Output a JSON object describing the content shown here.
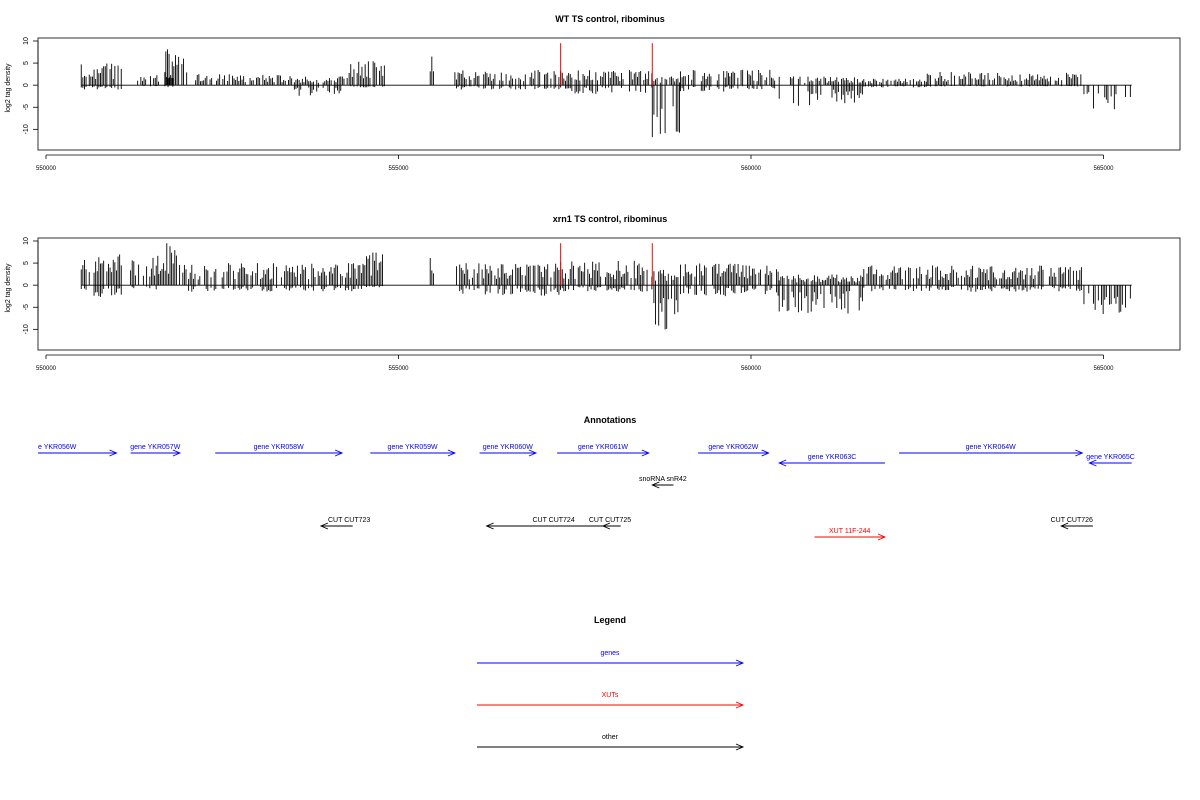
{
  "chart_data": [
    {
      "type": "bar",
      "title": "WT TS control, ribominus",
      "xlabel": "",
      "ylabel": "log2 tag density",
      "xlim": [
        550000,
        566000
      ],
      "ylim": [
        -14,
        10
      ],
      "x_ticks": [
        550000,
        555000,
        560000,
        565000
      ],
      "x_tick_labels": [
        "550000",
        "555000",
        "560000",
        "565000"
      ],
      "y_ticks": [
        -10,
        -5,
        0,
        5,
        10
      ],
      "y_tick_labels": [
        "-10",
        "-5",
        "0",
        "5",
        "10"
      ],
      "grid": false,
      "baseline": {
        "from": 550500,
        "to": 565400
      },
      "red_markers": [
        {
          "x": 557300,
          "top": 9.5
        },
        {
          "x": 558600,
          "top": 9.5
        }
      ],
      "segments": [
        {
          "from": 550500,
          "to": 551100,
          "pos": 5,
          "neg": 1
        },
        {
          "from": 551300,
          "to": 551800,
          "pos": 3,
          "neg": 0.5
        },
        {
          "from": 551700,
          "to": 552000,
          "pos": 8.5,
          "neg": 0
        },
        {
          "from": 552100,
          "to": 553500,
          "pos": 2.5,
          "neg": 0
        },
        {
          "from": 553500,
          "to": 554300,
          "pos": 2,
          "neg": 2.5
        },
        {
          "from": 554300,
          "to": 554800,
          "pos": 5.5,
          "neg": 0.5
        },
        {
          "from": 555450,
          "to": 555500,
          "pos": 7,
          "neg": 0
        },
        {
          "from": 555800,
          "to": 557300,
          "pos": 3.5,
          "neg": 1
        },
        {
          "from": 557300,
          "to": 558600,
          "pos": 3.5,
          "neg": 2
        },
        {
          "from": 558600,
          "to": 559000,
          "pos": 2,
          "neg": 13.5
        },
        {
          "from": 559000,
          "to": 559700,
          "pos": 3.5,
          "neg": 1.5
        },
        {
          "from": 559700,
          "to": 560400,
          "pos": 3.5,
          "neg": 1
        },
        {
          "from": 560400,
          "to": 561600,
          "pos": 2,
          "neg": 5
        },
        {
          "from": 561600,
          "to": 562500,
          "pos": 1.5,
          "neg": 0.5
        },
        {
          "from": 562500,
          "to": 564700,
          "pos": 3,
          "neg": 0.3
        },
        {
          "from": 564700,
          "to": 565400,
          "pos": 0,
          "neg": 5.5
        }
      ]
    },
    {
      "type": "bar",
      "title": "xrn1 TS control, ribominus",
      "xlabel": "",
      "ylabel": "log2 tag density",
      "xlim": [
        550000,
        566000
      ],
      "ylim": [
        -14,
        10
      ],
      "x_ticks": [
        550000,
        555000,
        560000,
        565000
      ],
      "x_tick_labels": [
        "550000",
        "555000",
        "560000",
        "565000"
      ],
      "y_ticks": [
        -10,
        -5,
        0,
        5,
        10
      ],
      "y_tick_labels": [
        "-10",
        "-5",
        "0",
        "5",
        "10"
      ],
      "grid": false,
      "baseline": {
        "from": 550500,
        "to": 565400
      },
      "red_markers": [
        {
          "x": 557300,
          "top": 9.5
        },
        {
          "x": 558600,
          "top": 9.5
        }
      ],
      "segments": [
        {
          "from": 550500,
          "to": 551100,
          "pos": 7,
          "neg": 3
        },
        {
          "from": 551200,
          "to": 551600,
          "pos": 7,
          "neg": 1
        },
        {
          "from": 551600,
          "to": 552000,
          "pos": 9.5,
          "neg": 0
        },
        {
          "from": 552000,
          "to": 554500,
          "pos": 5,
          "neg": 1.5
        },
        {
          "from": 554500,
          "to": 554800,
          "pos": 7.5,
          "neg": 0.5
        },
        {
          "from": 555450,
          "to": 555500,
          "pos": 7,
          "neg": 0
        },
        {
          "from": 555800,
          "to": 557300,
          "pos": 5,
          "neg": 2.5
        },
        {
          "from": 557300,
          "to": 558600,
          "pos": 5.5,
          "neg": 1.5
        },
        {
          "from": 558600,
          "to": 559000,
          "pos": 3.5,
          "neg": 13
        },
        {
          "from": 559000,
          "to": 560400,
          "pos": 5,
          "neg": 2.5
        },
        {
          "from": 560400,
          "to": 561600,
          "pos": 2.5,
          "neg": 6.5
        },
        {
          "from": 561600,
          "to": 564700,
          "pos": 4.5,
          "neg": 1.5
        },
        {
          "from": 564700,
          "to": 565400,
          "pos": 0,
          "neg": 7
        }
      ]
    }
  ],
  "annotations": {
    "title": "Annotations",
    "features": [
      {
        "label": "e YKR056W",
        "color": "#0000ff",
        "dir": "right",
        "from": 549800,
        "to": 551000,
        "row": 0,
        "label_x": 549800
      },
      {
        "label": "gene YKR057W",
        "color": "#0000ff",
        "dir": "right",
        "from": 551200,
        "to": 551900,
        "row": 0,
        "label_x": 551550
      },
      {
        "label": "gene YKR058W",
        "color": "#0000ff",
        "dir": "right",
        "from": 552400,
        "to": 554200,
        "row": 0,
        "label_x": 553300
      },
      {
        "label": "gene YKR059W",
        "color": "#0000ff",
        "dir": "right",
        "from": 554600,
        "to": 555800,
        "row": 0,
        "label_x": 555200
      },
      {
        "label": "gene YKR060W",
        "color": "#0000ff",
        "dir": "right",
        "from": 556150,
        "to": 556950,
        "row": 0,
        "label_x": 556550
      },
      {
        "label": "gene YKR061W",
        "color": "#0000ff",
        "dir": "right",
        "from": 557250,
        "to": 558550,
        "row": 0,
        "label_x": 557900
      },
      {
        "label": "gene YKR062W",
        "color": "#0000ff",
        "dir": "right",
        "from": 559250,
        "to": 560250,
        "row": 0,
        "label_x": 559750
      },
      {
        "label": "gene YKR063C",
        "color": "#0000ff",
        "dir": "left",
        "from": 560400,
        "to": 561900,
        "row": 1,
        "label_x": 561150
      },
      {
        "label": "gene YKR064W",
        "color": "#0000ff",
        "dir": "right",
        "from": 562100,
        "to": 564700,
        "row": 0,
        "label_x": 563400
      },
      {
        "label": "gene YKR065C",
        "color": "#0000ff",
        "dir": "left",
        "from": 564800,
        "to": 565400,
        "row": 1,
        "label_x": 565100
      },
      {
        "label": "snoRNA snR42",
        "color": "#000000",
        "dir": "left",
        "from": 558600,
        "to": 558900,
        "row": 2,
        "label_x": 558750
      },
      {
        "label": "CUT CUT723",
        "color": "#000000",
        "dir": "left",
        "from": 553900,
        "to": 554350,
        "row": 3,
        "label_x": 554300
      },
      {
        "label": "CUT CUT724",
        "color": "#000000",
        "dir": "left",
        "from": 556250,
        "to": 558150,
        "row": 3,
        "label_x": 557200
      },
      {
        "label": "CUT CUT725",
        "color": "#000000",
        "dir": "left",
        "from": 557900,
        "to": 558150,
        "row": 3,
        "label_x": 558000
      },
      {
        "label": "XUT 11F-244",
        "color": "#ff0000",
        "dir": "right",
        "from": 560900,
        "to": 561900,
        "row": 4,
        "label_x": 561400
      },
      {
        "label": "CUT CUT726",
        "color": "#000000",
        "dir": "left",
        "from": 564400,
        "to": 564850,
        "row": 3,
        "label_x": 564550
      }
    ]
  },
  "legend": {
    "title": "Legend",
    "items": [
      {
        "label": "genes",
        "color": "#0000ff"
      },
      {
        "label": "XUTs",
        "color": "#ff0000"
      },
      {
        "label": "other",
        "color": "#000000"
      }
    ]
  }
}
